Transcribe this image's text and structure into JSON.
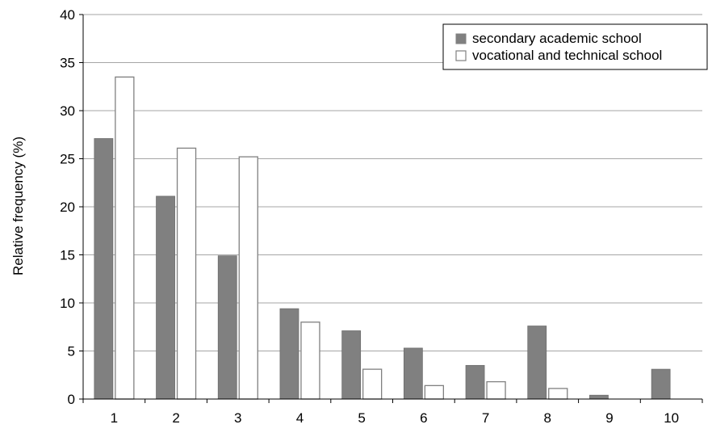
{
  "chart_data": {
    "type": "bar",
    "categories": [
      "1",
      "2",
      "3",
      "4",
      "5",
      "6",
      "7",
      "8",
      "9",
      "10"
    ],
    "series": [
      {
        "name": "secondary academic school",
        "values": [
          27.1,
          21.1,
          14.9,
          9.4,
          7.1,
          5.3,
          3.5,
          7.6,
          0.4,
          3.1
        ],
        "color": "#808080"
      },
      {
        "name": "vocational and technical school",
        "values": [
          33.5,
          26.1,
          25.2,
          8.0,
          3.1,
          1.4,
          1.8,
          1.1,
          0,
          0
        ],
        "color": "#ffffff"
      }
    ],
    "ylabel": "Relative frequency (%)",
    "xlabel": "",
    "ylim": [
      0,
      40
    ],
    "yticks": [
      0,
      5,
      10,
      15,
      20,
      25,
      30,
      35,
      40
    ],
    "grid": true,
    "legend_position": "top-right"
  }
}
